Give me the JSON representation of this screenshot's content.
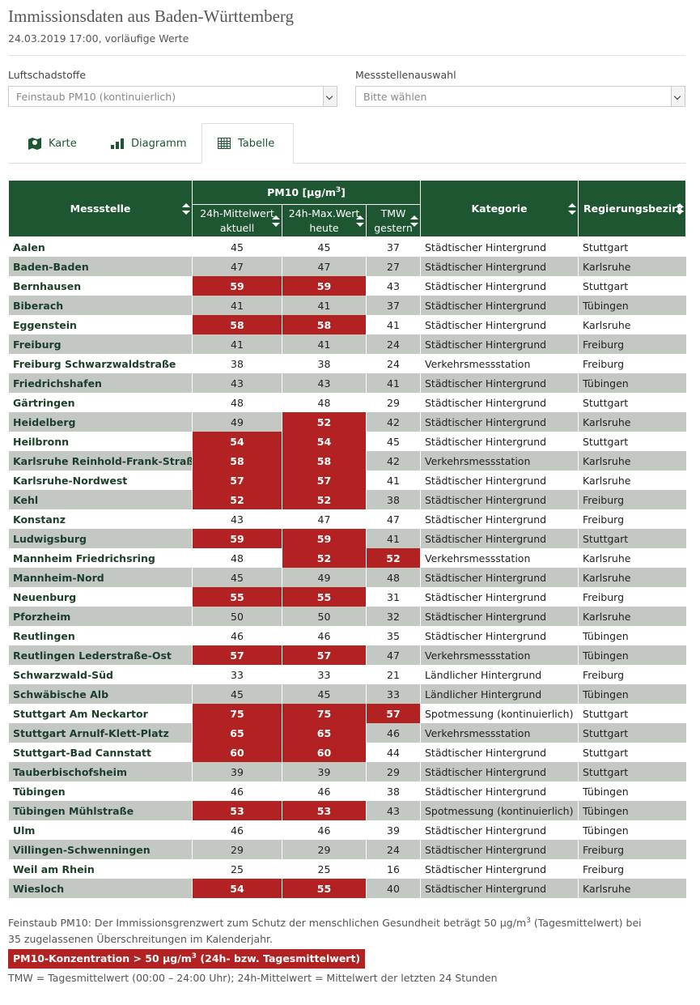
{
  "header": {
    "title": "Immissionsdaten aus Baden-Württemberg",
    "subtitle": "24.03.2019 17:00, vorläufige Werte"
  },
  "filters": [
    {
      "label": "Luftschadstoffe",
      "value": "Feinstaub PM10 (kontinuierlich)"
    },
    {
      "label": "Messstellenauswahl",
      "value": "Bitte wählen"
    }
  ],
  "tabs": [
    "Karte",
    "Diagramm",
    "Tabelle"
  ],
  "table": {
    "columns": {
      "station": "Messstelle",
      "group": {
        "prefix": "PM10 [µg/m",
        "sup": "3",
        "suffix": "]"
      },
      "sub": [
        [
          "24h-Mittelwert",
          "aktuell"
        ],
        [
          "24h-Max.Wert",
          "heute"
        ],
        [
          "TMW",
          "gestern"
        ]
      ],
      "category": "Kategorie",
      "district": "Regierungsbezirk"
    },
    "rows": [
      [
        "Aalen",
        45,
        45,
        37,
        "Städtischer Hintergrund",
        "Stuttgart"
      ],
      [
        "Baden-Baden",
        47,
        47,
        27,
        "Städtischer Hintergrund",
        "Karlsruhe"
      ],
      [
        "Bernhausen",
        59,
        59,
        43,
        "Städtischer Hintergrund",
        "Stuttgart"
      ],
      [
        "Biberach",
        41,
        41,
        37,
        "Städtischer Hintergrund",
        "Tübingen"
      ],
      [
        "Eggenstein",
        58,
        58,
        41,
        "Städtischer Hintergrund",
        "Karlsruhe"
      ],
      [
        "Freiburg",
        41,
        41,
        24,
        "Städtischer Hintergrund",
        "Freiburg"
      ],
      [
        "Freiburg Schwarzwaldstraße",
        38,
        38,
        24,
        "Verkehrsmessstation",
        "Freiburg"
      ],
      [
        "Friedrichshafen",
        43,
        43,
        41,
        "Städtischer Hintergrund",
        "Tübingen"
      ],
      [
        "Gärtringen",
        48,
        48,
        29,
        "Städtischer Hintergrund",
        "Stuttgart"
      ],
      [
        "Heidelberg",
        49,
        52,
        42,
        "Städtischer Hintergrund",
        "Karlsruhe"
      ],
      [
        "Heilbronn",
        54,
        54,
        45,
        "Städtischer Hintergrund",
        "Stuttgart"
      ],
      [
        "Karlsruhe Reinhold-Frank-Straße",
        58,
        58,
        42,
        "Verkehrsmessstation",
        "Karlsruhe"
      ],
      [
        "Karlsruhe-Nordwest",
        57,
        57,
        41,
        "Städtischer Hintergrund",
        "Karlsruhe"
      ],
      [
        "Kehl",
        52,
        52,
        38,
        "Städtischer Hintergrund",
        "Freiburg"
      ],
      [
        "Konstanz",
        43,
        47,
        47,
        "Städtischer Hintergrund",
        "Freiburg"
      ],
      [
        "Ludwigsburg",
        59,
        59,
        41,
        "Städtischer Hintergrund",
        "Stuttgart"
      ],
      [
        "Mannheim Friedrichsring",
        48,
        52,
        52,
        "Verkehrsmessstation",
        "Karlsruhe"
      ],
      [
        "Mannheim-Nord",
        45,
        49,
        48,
        "Städtischer Hintergrund",
        "Karlsruhe"
      ],
      [
        "Neuenburg",
        55,
        55,
        31,
        "Städtischer Hintergrund",
        "Freiburg"
      ],
      [
        "Pforzheim",
        50,
        50,
        32,
        "Städtischer Hintergrund",
        "Karlsruhe"
      ],
      [
        "Reutlingen",
        46,
        46,
        35,
        "Städtischer Hintergrund",
        "Tübingen"
      ],
      [
        "Reutlingen Lederstraße-Ost",
        57,
        57,
        47,
        "Verkehrsmessstation",
        "Tübingen"
      ],
      [
        "Schwarzwald-Süd",
        33,
        33,
        21,
        "Ländlicher Hintergrund",
        "Freiburg"
      ],
      [
        "Schwäbische Alb",
        45,
        45,
        33,
        "Ländlicher Hintergrund",
        "Tübingen"
      ],
      [
        "Stuttgart Am Neckartor",
        75,
        75,
        57,
        "Spotmessung (kontinuierlich)",
        "Stuttgart"
      ],
      [
        "Stuttgart Arnulf-Klett-Platz",
        65,
        65,
        46,
        "Verkehrsmessstation",
        "Stuttgart"
      ],
      [
        "Stuttgart-Bad Cannstatt",
        60,
        60,
        44,
        "Städtischer Hintergrund",
        "Stuttgart"
      ],
      [
        "Tauberbischofsheim",
        39,
        39,
        29,
        "Städtischer Hintergrund",
        "Stuttgart"
      ],
      [
        "Tübingen",
        46,
        46,
        38,
        "Städtischer Hintergrund",
        "Tübingen"
      ],
      [
        "Tübingen Mühlstraße",
        53,
        53,
        43,
        "Spotmessung (kontinuierlich)",
        "Tübingen"
      ],
      [
        "Ulm",
        46,
        46,
        39,
        "Städtischer Hintergrund",
        "Tübingen"
      ],
      [
        "Villingen-Schwenningen",
        29,
        29,
        24,
        "Städtischer Hintergrund",
        "Freiburg"
      ],
      [
        "Weil am Rhein",
        25,
        25,
        16,
        "Städtischer Hintergrund",
        "Freiburg"
      ],
      [
        "Wiesloch",
        54,
        55,
        40,
        "Städtischer Hintergrund",
        "Karlsruhe"
      ]
    ]
  },
  "footnote": {
    "prefix": "Feinstaub PM10: Der Immissionsgrenzwert zum Schutz der menschlichen Gesundheit beträgt 50 µg/m",
    "sup": "3",
    "suffix": " (Tagesmittelwert) bei 35 zugelassenen Überschreitungen im Kalenderjahr."
  },
  "legend": {
    "prefix": "PM10-Konzentration > ",
    "threshold": 50,
    "unit": " µg/m",
    "sup": "3",
    "suffix": " (24h- bzw. Tagesmittelwert)"
  },
  "note": "TMW = Tagesmittelwert (00:00 – 24:00 Uhr); 24h-Mittelwert = Mittelwert der letzten 24 Stunden"
}
